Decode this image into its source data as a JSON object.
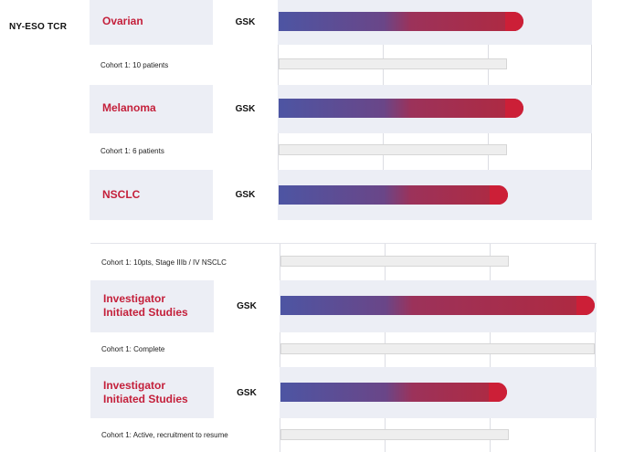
{
  "section_label": "NY-ESO TCR",
  "colors": {
    "indication": "#c4203b",
    "bar_start": "#4d55a3",
    "bar_end": "#cc1f37"
  },
  "chart_data": [
    {
      "type": "bar",
      "orientation": "horizontal",
      "rows": [
        {
          "indication": "Ovarian",
          "sponsor": "GSK",
          "progress": 0.78,
          "cohort": "Cohort 1: 10 patients"
        },
        {
          "indication": "Melanoma",
          "sponsor": "GSK",
          "progress": 0.78,
          "cohort": "Cohort 1: 6 patients"
        },
        {
          "indication": "NSCLC",
          "sponsor": "GSK",
          "progress": 0.73
        }
      ]
    },
    {
      "type": "bar",
      "orientation": "horizontal",
      "rows": [
        {
          "cohort": "Cohort 1: 10pts, Stage IIIb / IV NSCLC"
        },
        {
          "indication": "Investigator Initiated Studies",
          "sponsor": "GSK",
          "progress": 1.0,
          "cohort": "Cohort 1: Complete"
        },
        {
          "indication": "Investigator Initiated Studies",
          "sponsor": "GSK",
          "progress": 0.72,
          "cohort": "Cohort 1: Active, recruitment to resume"
        }
      ]
    }
  ]
}
